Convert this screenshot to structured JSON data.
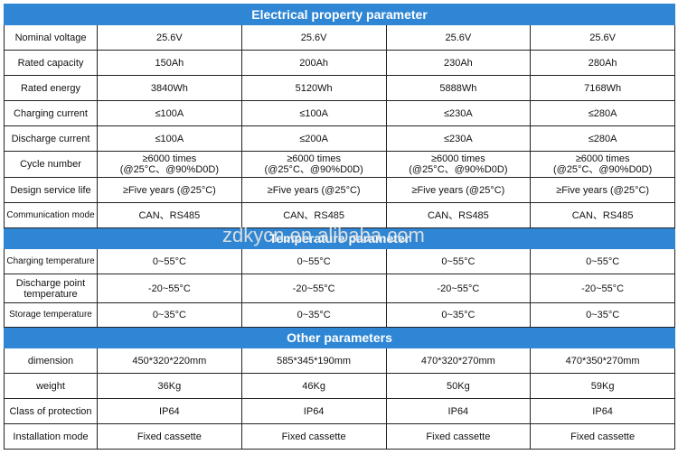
{
  "sections": {
    "electrical": "Electrical property parameter",
    "temperature": "Temperature parameter",
    "other": "Other parameters"
  },
  "electrical_rows": [
    {
      "label": "Nominal voltage",
      "values": [
        "25.6V",
        "25.6V",
        "25.6V",
        "25.6V"
      ]
    },
    {
      "label": "Rated capacity",
      "values": [
        "150Ah",
        "200Ah",
        "230Ah",
        "280Ah"
      ]
    },
    {
      "label": "Rated energy",
      "values": [
        "3840Wh",
        "5120Wh",
        "5888Wh",
        "7168Wh"
      ]
    },
    {
      "label": "Charging current",
      "values": [
        "≤100A",
        "≤100A",
        "≤230A",
        "≤280A"
      ]
    },
    {
      "label": "Discharge current",
      "values": [
        "≤100A",
        "≤200A",
        "≤230A",
        "≤280A"
      ]
    },
    {
      "label": "Cycle number",
      "line1": "≥6000 times",
      "line2": "(@25°C、@90%D0D)"
    },
    {
      "label": "Design service life",
      "values": [
        "≥Five years (@25°C)",
        "≥Five years (@25°C)",
        "≥Five years (@25°C)",
        "≥Five years (@25°C)"
      ]
    },
    {
      "label": "Communication mode",
      "values": [
        "CAN、RS485",
        "CAN、RS485",
        "CAN、RS485",
        "CAN、RS485"
      ]
    }
  ],
  "temperature_rows": [
    {
      "label": "Charging temperature",
      "values": [
        "0~55°C",
        "0~55°C",
        "0~55°C",
        "0~55°C"
      ]
    },
    {
      "label": "Discharge point temperature",
      "values": [
        "-20~55°C",
        "-20~55°C",
        "-20~55°C",
        "-20~55°C"
      ]
    },
    {
      "label": "Storage temperature",
      "values": [
        "0~35°C",
        "0~35°C",
        "0~35°C",
        "0~35°C"
      ]
    }
  ],
  "other_rows": [
    {
      "label": "dimension",
      "values": [
        "450*320*220mm",
        "585*345*190mm",
        "470*320*270mm",
        "470*350*270mm"
      ]
    },
    {
      "label": "weight",
      "values": [
        "36Kg",
        "46Kg",
        "50Kg",
        "59Kg"
      ]
    },
    {
      "label": "Class of protection",
      "values": [
        "IP64",
        "IP64",
        "IP64",
        "IP64"
      ]
    },
    {
      "label": "Installation mode",
      "values": [
        "Fixed cassette",
        "Fixed cassette",
        "Fixed cassette",
        "Fixed cassette"
      ]
    }
  ],
  "watermark": "zdkycn.en.alibaba.com",
  "colors": {
    "header_bg": "#2e86d4",
    "header_text": "#ffffff"
  }
}
